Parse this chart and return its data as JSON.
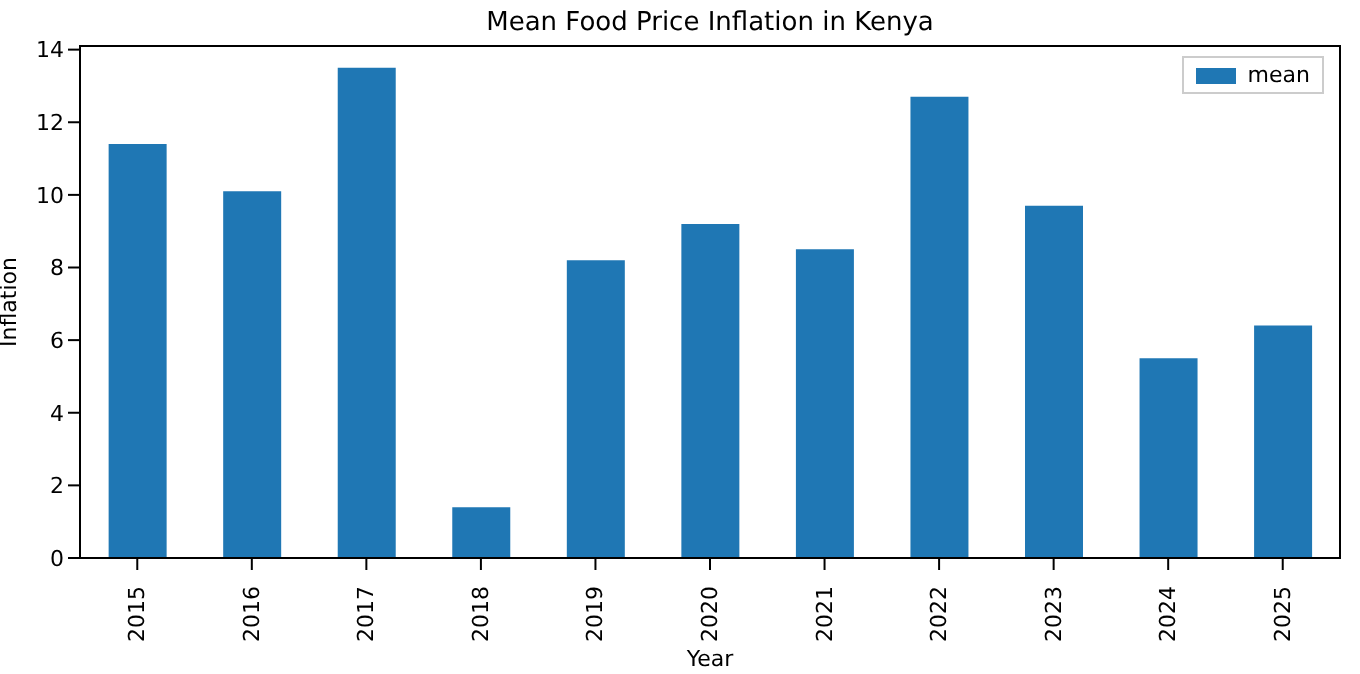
{
  "chart_data": {
    "type": "bar",
    "title": "Mean Food Price Inflation in Kenya",
    "xlabel": "Year",
    "ylabel": "Inflation",
    "categories": [
      "2015",
      "2016",
      "2017",
      "2018",
      "2019",
      "2020",
      "2021",
      "2022",
      "2023",
      "2024",
      "2025"
    ],
    "series": [
      {
        "name": "mean",
        "color": "#1f77b4",
        "values": [
          11.4,
          10.1,
          13.5,
          1.4,
          8.2,
          9.2,
          8.5,
          12.7,
          9.7,
          5.5,
          6.4
        ]
      }
    ],
    "ylim": [
      0,
      14.1
    ],
    "yticks": [
      0,
      2,
      4,
      6,
      8,
      10,
      12,
      14
    ],
    "grid": false,
    "legend": "top right"
  }
}
